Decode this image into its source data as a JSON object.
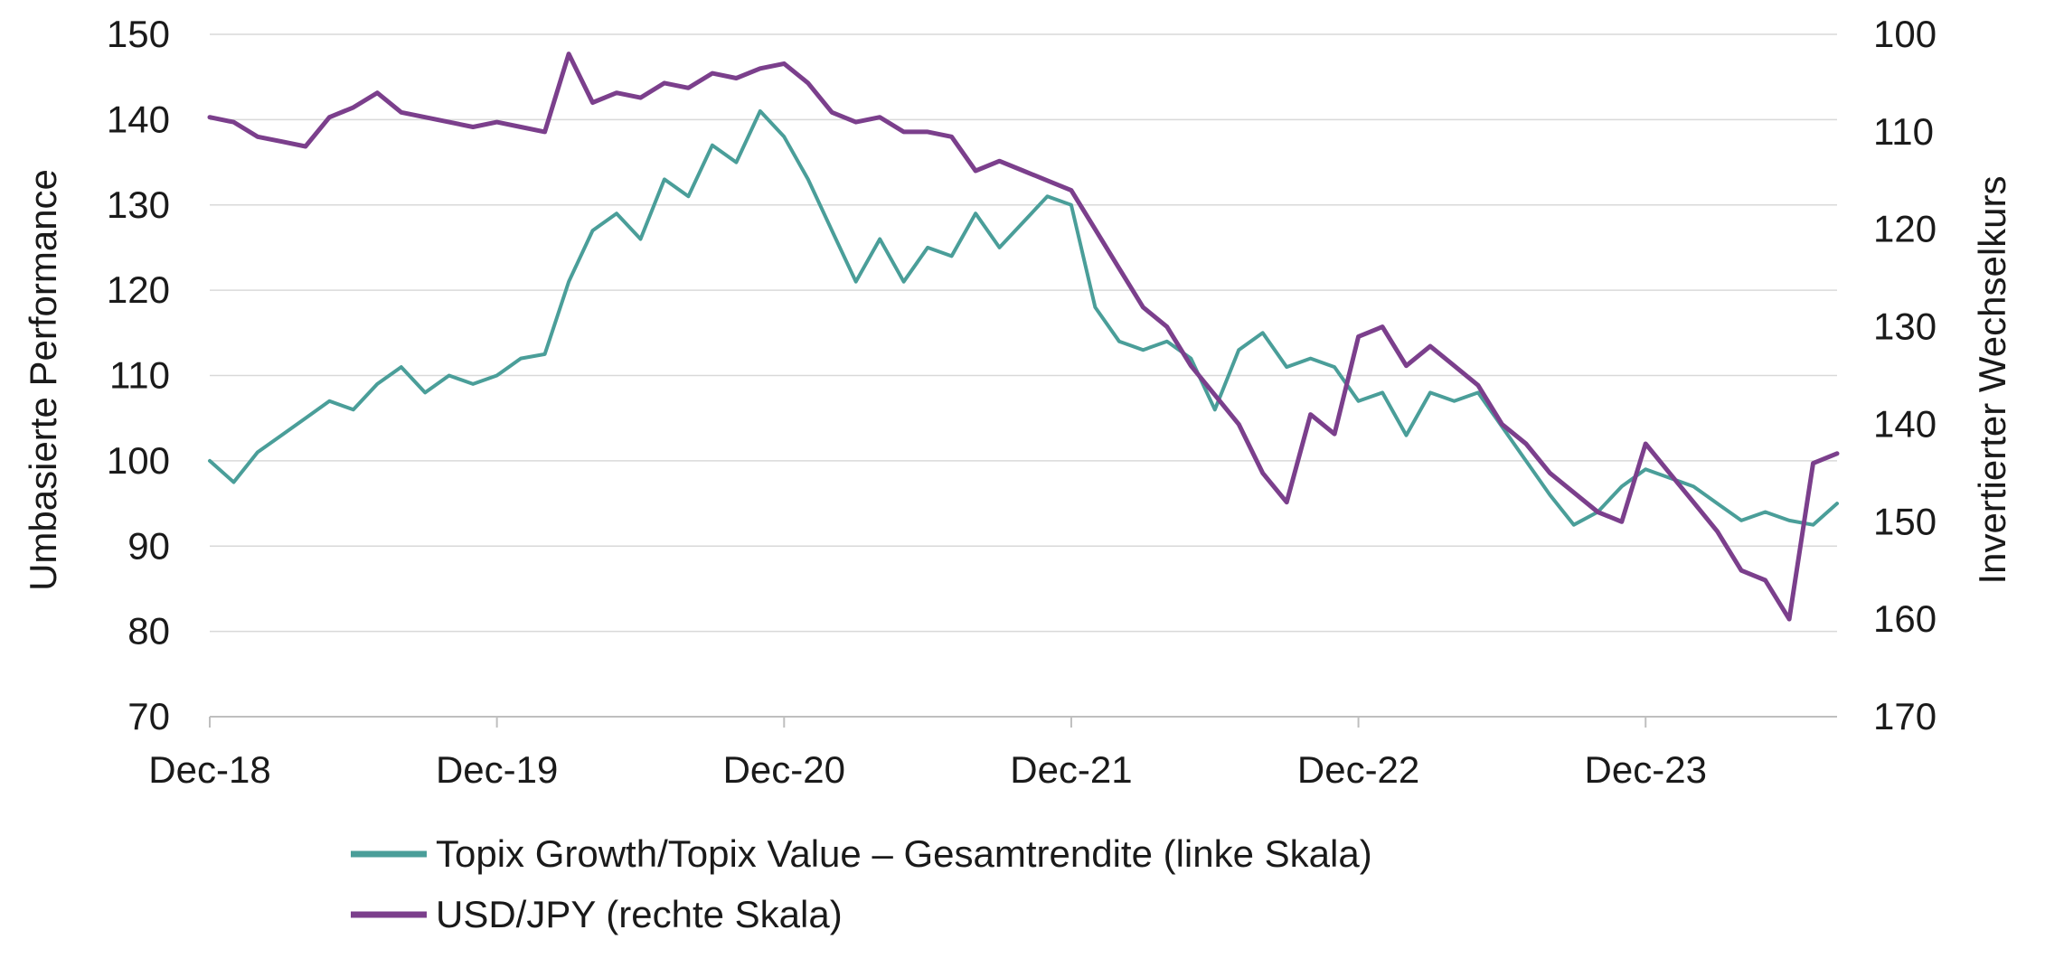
{
  "chart_data": {
    "type": "line",
    "title": "",
    "left_axis": {
      "label": "Umbasierte Performance",
      "range": [
        70,
        150
      ],
      "ticks": [
        70,
        80,
        90,
        100,
        110,
        120,
        130,
        140,
        150
      ]
    },
    "right_axis": {
      "label": "Invertierter Wechselkurs",
      "range": [
        100,
        170
      ],
      "inverted": true,
      "ticks": [
        100,
        110,
        120,
        130,
        140,
        150,
        160,
        170
      ]
    },
    "x_axis": {
      "range": [
        "2018-12",
        "2024-08"
      ],
      "tick_labels": [
        "Dec-18",
        "Dec-19",
        "Dec-20",
        "Dec-21",
        "Dec-22",
        "Dec-23"
      ],
      "tick_dates": [
        "2018-12",
        "2019-12",
        "2020-12",
        "2021-12",
        "2022-12",
        "2023-12"
      ]
    },
    "grid": "horizontal",
    "legend_position": "bottom",
    "series": [
      {
        "name": "Topix Growth/Topix Value – Gesamtrendite (linke Skala)",
        "axis": "left",
        "color": "#4a9e99",
        "points": [
          [
            "2018-12",
            100
          ],
          [
            "2019-01",
            97.5
          ],
          [
            "2019-02",
            101
          ],
          [
            "2019-03",
            103
          ],
          [
            "2019-04",
            105
          ],
          [
            "2019-05",
            107
          ],
          [
            "2019-06",
            106
          ],
          [
            "2019-07",
            109
          ],
          [
            "2019-08",
            111
          ],
          [
            "2019-09",
            108
          ],
          [
            "2019-10",
            110
          ],
          [
            "2019-11",
            109
          ],
          [
            "2019-12",
            110
          ],
          [
            "2020-01",
            112
          ],
          [
            "2020-02",
            112.5
          ],
          [
            "2020-03",
            121
          ],
          [
            "2020-04",
            127
          ],
          [
            "2020-05",
            129
          ],
          [
            "2020-06",
            126
          ],
          [
            "2020-07",
            133
          ],
          [
            "2020-08",
            131
          ],
          [
            "2020-09",
            137
          ],
          [
            "2020-10",
            135
          ],
          [
            "2020-11",
            141
          ],
          [
            "2020-12",
            138
          ],
          [
            "2021-01",
            133
          ],
          [
            "2021-02",
            127
          ],
          [
            "2021-03",
            121
          ],
          [
            "2021-04",
            126
          ],
          [
            "2021-05",
            121
          ],
          [
            "2021-06",
            125
          ],
          [
            "2021-07",
            124
          ],
          [
            "2021-08",
            129
          ],
          [
            "2021-09",
            125
          ],
          [
            "2021-10",
            128
          ],
          [
            "2021-11",
            131
          ],
          [
            "2021-12",
            130
          ],
          [
            "2022-01",
            118
          ],
          [
            "2022-02",
            114
          ],
          [
            "2022-03",
            113
          ],
          [
            "2022-04",
            114
          ],
          [
            "2022-05",
            112
          ],
          [
            "2022-06",
            106
          ],
          [
            "2022-07",
            113
          ],
          [
            "2022-08",
            115
          ],
          [
            "2022-09",
            111
          ],
          [
            "2022-10",
            112
          ],
          [
            "2022-11",
            111
          ],
          [
            "2022-12",
            107
          ],
          [
            "2023-01",
            108
          ],
          [
            "2023-02",
            103
          ],
          [
            "2023-03",
            108
          ],
          [
            "2023-04",
            107
          ],
          [
            "2023-05",
            108
          ],
          [
            "2023-06",
            104
          ],
          [
            "2023-07",
            100
          ],
          [
            "2023-08",
            96
          ],
          [
            "2023-09",
            92.5
          ],
          [
            "2023-10",
            94
          ],
          [
            "2023-11",
            97
          ],
          [
            "2023-12",
            99
          ],
          [
            "2024-01",
            98
          ],
          [
            "2024-02",
            97
          ],
          [
            "2024-03",
            95
          ],
          [
            "2024-04",
            93
          ],
          [
            "2024-05",
            94
          ],
          [
            "2024-06",
            93
          ],
          [
            "2024-07",
            92.5
          ],
          [
            "2024-08",
            95
          ]
        ]
      },
      {
        "name": "USD/JPY (rechte Skala)",
        "axis": "right",
        "color": "#7b3f8c",
        "points": [
          [
            "2018-12",
            108.5
          ],
          [
            "2019-01",
            109
          ],
          [
            "2019-02",
            110.5
          ],
          [
            "2019-03",
            111
          ],
          [
            "2019-04",
            111.5
          ],
          [
            "2019-05",
            108.5
          ],
          [
            "2019-06",
            107.5
          ],
          [
            "2019-07",
            106
          ],
          [
            "2019-08",
            108
          ],
          [
            "2019-09",
            108.5
          ],
          [
            "2019-10",
            109
          ],
          [
            "2019-11",
            109.5
          ],
          [
            "2019-12",
            109
          ],
          [
            "2020-01",
            109.5
          ],
          [
            "2020-02",
            110
          ],
          [
            "2020-03",
            102
          ],
          [
            "2020-04",
            107
          ],
          [
            "2020-05",
            106
          ],
          [
            "2020-06",
            106.5
          ],
          [
            "2020-07",
            105
          ],
          [
            "2020-08",
            105.5
          ],
          [
            "2020-09",
            104
          ],
          [
            "2020-10",
            104.5
          ],
          [
            "2020-11",
            103.5
          ],
          [
            "2020-12",
            103
          ],
          [
            "2021-01",
            105
          ],
          [
            "2021-02",
            108
          ],
          [
            "2021-03",
            109
          ],
          [
            "2021-04",
            108.5
          ],
          [
            "2021-05",
            110
          ],
          [
            "2021-06",
            110
          ],
          [
            "2021-07",
            110.5
          ],
          [
            "2021-08",
            114
          ],
          [
            "2021-09",
            113
          ],
          [
            "2021-10",
            114
          ],
          [
            "2021-11",
            115
          ],
          [
            "2021-12",
            116
          ],
          [
            "2022-01",
            120
          ],
          [
            "2022-02",
            124
          ],
          [
            "2022-03",
            128
          ],
          [
            "2022-04",
            130
          ],
          [
            "2022-05",
            134
          ],
          [
            "2022-06",
            137
          ],
          [
            "2022-07",
            140
          ],
          [
            "2022-08",
            145
          ],
          [
            "2022-09",
            148
          ],
          [
            "2022-10",
            139
          ],
          [
            "2022-11",
            141
          ],
          [
            "2022-12",
            131
          ],
          [
            "2023-01",
            130
          ],
          [
            "2023-02",
            134
          ],
          [
            "2023-03",
            132
          ],
          [
            "2023-04",
            134
          ],
          [
            "2023-05",
            136
          ],
          [
            "2023-06",
            140
          ],
          [
            "2023-07",
            142
          ],
          [
            "2023-08",
            145
          ],
          [
            "2023-09",
            147
          ],
          [
            "2023-10",
            149
          ],
          [
            "2023-11",
            150
          ],
          [
            "2023-12",
            142
          ],
          [
            "2024-01",
            145
          ],
          [
            "2024-02",
            148
          ],
          [
            "2024-03",
            151
          ],
          [
            "2024-04",
            155
          ],
          [
            "2024-05",
            156
          ],
          [
            "2024-06",
            160
          ],
          [
            "2024-07",
            144
          ],
          [
            "2024-08",
            143
          ]
        ]
      }
    ]
  }
}
